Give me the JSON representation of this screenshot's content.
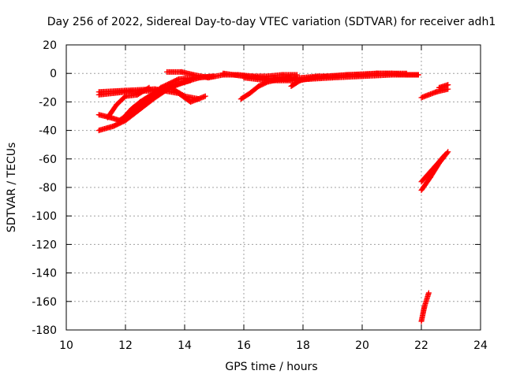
{
  "chart_data": {
    "type": "scatter",
    "title": "Day 256 of 2022, Sidereal Day-to-day VTEC variation (SDTVAR) for receiver adh1",
    "xlabel": "GPS time / hours",
    "ylabel": "SDTVAR / TECUs",
    "xlim": [
      10,
      24
    ],
    "ylim": [
      -180,
      20
    ],
    "xticks": [
      "10",
      "12",
      "14",
      "16",
      "18",
      "20",
      "22",
      "24"
    ],
    "yticks": [
      "20",
      "0",
      "-20",
      "-40",
      "-60",
      "-80",
      "-100",
      "-120",
      "-140",
      "-160",
      "-180"
    ],
    "grid": true,
    "marker": "plus",
    "color": "#ff0000",
    "series": [
      {
        "segments": [
          [
            [
              11.1,
              -15
            ],
            [
              12.0,
              -13
            ],
            [
              13.0,
              -12
            ],
            [
              13.6,
              -11
            ],
            [
              14.0,
              -16
            ],
            [
              14.5,
              -18
            ]
          ],
          [
            [
              11.1,
              -13
            ],
            [
              12.0,
              -12
            ],
            [
              13.0,
              -11
            ],
            [
              13.8,
              -14
            ],
            [
              14.2,
              -20
            ],
            [
              14.7,
              -16
            ]
          ],
          [
            [
              11.1,
              -40
            ],
            [
              11.6,
              -37
            ],
            [
              12.0,
              -33
            ],
            [
              12.5,
              -25
            ],
            [
              13.0,
              -17
            ],
            [
              13.5,
              -10
            ],
            [
              14.0,
              -6
            ],
            [
              14.5,
              -3
            ],
            [
              15.0,
              -2
            ]
          ],
          [
            [
              11.1,
              -29
            ],
            [
              11.5,
              -31
            ],
            [
              11.8,
              -33
            ],
            [
              12.2,
              -27
            ],
            [
              12.7,
              -18
            ],
            [
              13.2,
              -10
            ],
            [
              13.8,
              -4
            ],
            [
              14.3,
              -3
            ],
            [
              15.0,
              -2
            ]
          ],
          [
            [
              11.4,
              -31
            ],
            [
              11.7,
              -22
            ],
            [
              12.0,
              -16
            ],
            [
              12.4,
              -15
            ],
            [
              12.8,
              -10
            ]
          ],
          [
            [
              11.9,
              -32
            ],
            [
              12.2,
              -25
            ],
            [
              12.5,
              -20
            ],
            [
              12.8,
              -16
            ]
          ],
          [
            [
              12.0,
              -31
            ],
            [
              12.4,
              -24
            ],
            [
              12.8,
              -18
            ],
            [
              13.3,
              -12
            ],
            [
              13.7,
              -8
            ],
            [
              14.2,
              -5
            ]
          ],
          [
            [
              13.4,
              1
            ],
            [
              13.9,
              1
            ],
            [
              14.3,
              -1
            ],
            [
              14.8,
              -3
            ],
            [
              15.3,
              -1
            ],
            [
              15.8,
              -1
            ],
            [
              16.3,
              -2
            ],
            [
              16.8,
              -2
            ],
            [
              17.3,
              -1
            ],
            [
              17.8,
              -1
            ]
          ],
          [
            [
              15.3,
              0
            ],
            [
              16.0,
              -2
            ],
            [
              16.5,
              -3
            ],
            [
              17.0,
              -4
            ],
            [
              17.5,
              -4
            ],
            [
              18.0,
              -3
            ],
            [
              18.5,
              -2
            ],
            [
              19.0,
              -2
            ],
            [
              19.5,
              -1
            ],
            [
              20.0,
              -1
            ],
            [
              20.5,
              0
            ],
            [
              21.0,
              0
            ],
            [
              21.5,
              -1
            ],
            [
              21.9,
              -1
            ]
          ],
          [
            [
              16.0,
              -3
            ],
            [
              16.8,
              -5
            ],
            [
              17.6,
              -5
            ],
            [
              18.2,
              -4
            ],
            [
              19.0,
              -3
            ],
            [
              20.0,
              -2
            ],
            [
              21.0,
              -1
            ],
            [
              21.9,
              -1
            ]
          ],
          [
            [
              15.9,
              -18
            ],
            [
              16.2,
              -14
            ],
            [
              16.5,
              -9
            ],
            [
              16.8,
              -6
            ],
            [
              17.2,
              -4
            ],
            [
              17.6,
              -3
            ]
          ],
          [
            [
              17.6,
              -9
            ],
            [
              17.9,
              -5
            ],
            [
              18.3,
              -3
            ],
            [
              18.8,
              -2
            ],
            [
              19.5,
              -1
            ],
            [
              20.5,
              0
            ],
            [
              21.5,
              0
            ]
          ],
          [
            [
              22.0,
              -17
            ],
            [
              22.5,
              -13
            ],
            [
              22.9,
              -11
            ]
          ],
          [
            [
              22.6,
              -10
            ],
            [
              22.9,
              -8
            ]
          ],
          [
            [
              22.0,
              -82
            ],
            [
              22.3,
              -73
            ],
            [
              22.6,
              -63
            ],
            [
              22.9,
              -55
            ]
          ],
          [
            [
              22.0,
              -76
            ],
            [
              22.3,
              -69
            ],
            [
              22.6,
              -62
            ],
            [
              22.8,
              -57
            ]
          ],
          [
            [
              22.0,
              -174
            ],
            [
              22.1,
              -164
            ],
            [
              22.25,
              -154
            ]
          ]
        ]
      }
    ]
  }
}
